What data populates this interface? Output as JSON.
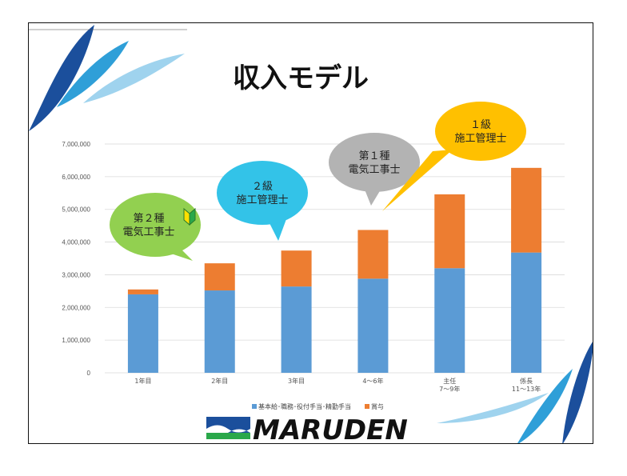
{
  "title": "収入モデル",
  "chart_data": {
    "type": "bar",
    "stacked": true,
    "categories": [
      "1年目",
      "2年目",
      "3年目",
      "4〜6年",
      "主任\n7〜9年",
      "係長\n11〜13年"
    ],
    "series": [
      {
        "name": "基本給･職務･役付手当･精勤手当",
        "color": "#5b9bd5",
        "values": [
          2400000,
          2520000,
          2640000,
          2880000,
          3200000,
          3680000
        ]
      },
      {
        "name": "賞与",
        "color": "#ed7d31",
        "values": [
          150000,
          830000,
          1100000,
          1490000,
          2260000,
          2590000
        ]
      }
    ],
    "y_ticks": [
      "0",
      "1,000,000",
      "2,000,000",
      "3,000,000",
      "4,000,000",
      "5,000,000",
      "6,000,000",
      "7,000,000"
    ],
    "ylim": [
      0,
      7000000
    ],
    "grid": true,
    "legend_position": "bottom"
  },
  "bubbles": [
    {
      "lines": [
        "第２種",
        "電気工事士"
      ],
      "color": "#92d050",
      "beginner_mark": true
    },
    {
      "lines": [
        "２級",
        "施工管理士"
      ],
      "color": "#33c3e8"
    },
    {
      "lines": [
        "第１種",
        "電気工事士"
      ],
      "color": "#b3b3b3"
    },
    {
      "lines": [
        "１級",
        "施工管理士"
      ],
      "color": "#ffc000"
    }
  ],
  "logo": {
    "text": "MARUDEN"
  },
  "colors": {
    "leaf_dark": "#1b4f9c",
    "leaf_mid": "#2f9fd8",
    "leaf_light": "#9fd3ee"
  }
}
